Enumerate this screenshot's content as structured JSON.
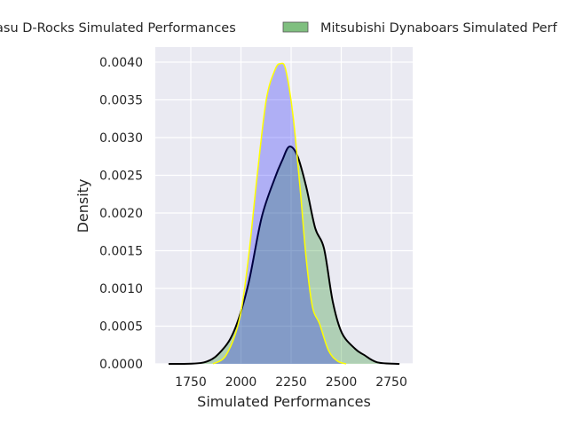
{
  "chart_data": {
    "type": "area",
    "kind": "kde",
    "title": "",
    "xlabel": "Simulated Performances",
    "ylabel": "Density",
    "xlim": [
      1573,
      2856
    ],
    "ylim": [
      0,
      0.0042
    ],
    "xticks": [
      1750,
      2000,
      2250,
      2500,
      2750
    ],
    "xtick_labels": [
      "1750",
      "2000",
      "2250",
      "2500",
      "2750"
    ],
    "yticks": [
      0,
      0.0005,
      0.001,
      0.0015,
      0.002,
      0.0025,
      0.003,
      0.0035,
      0.004
    ],
    "ytick_labels": [
      "0.0000",
      "0.0005",
      "0.0010",
      "0.0015",
      "0.0020",
      "0.0025",
      "0.0030",
      "0.0035",
      "0.0040"
    ],
    "grid": true,
    "legend_position": "top-center (clipped)",
    "series": [
      {
        "name": "Urayasu D-Rocks Simulated Performances",
        "legend_visible_text": "asu D-Rocks Simulated Performances",
        "fill_color": "#0000ff",
        "line_color": "#ffff00",
        "x": [
          1861,
          1927,
          1993,
          2037,
          2081,
          2126,
          2170,
          2197,
          2223,
          2259,
          2294,
          2325,
          2356,
          2392,
          2436,
          2480,
          2524
        ],
        "y": [
          0,
          0.00012,
          0.0006,
          0.0014,
          0.0025,
          0.0035,
          0.0039,
          0.00398,
          0.0039,
          0.0033,
          0.00235,
          0.0014,
          0.00076,
          0.00053,
          0.00018,
          4e-05,
          0
        ]
      },
      {
        "name": "Mitsubishi Dynaboars Simulated Performances",
        "legend_visible_text": "Mitsubishi Dynaboars Simulated Perf",
        "fill_color": "#008000",
        "line_color": "#000000",
        "x": [
          1639,
          1816,
          1905,
          1971,
          2037,
          2103,
          2170,
          2206,
          2241,
          2281,
          2325,
          2370,
          2414,
          2458,
          2503,
          2569,
          2613,
          2680,
          2790
        ],
        "y": [
          0,
          2e-05,
          0.00018,
          0.00047,
          0.00106,
          0.00194,
          0.00247,
          0.0027,
          0.00288,
          0.00276,
          0.00235,
          0.0018,
          0.00153,
          0.00082,
          0.00041,
          0.0002,
          0.00012,
          2e-05,
          0
        ]
      }
    ]
  }
}
